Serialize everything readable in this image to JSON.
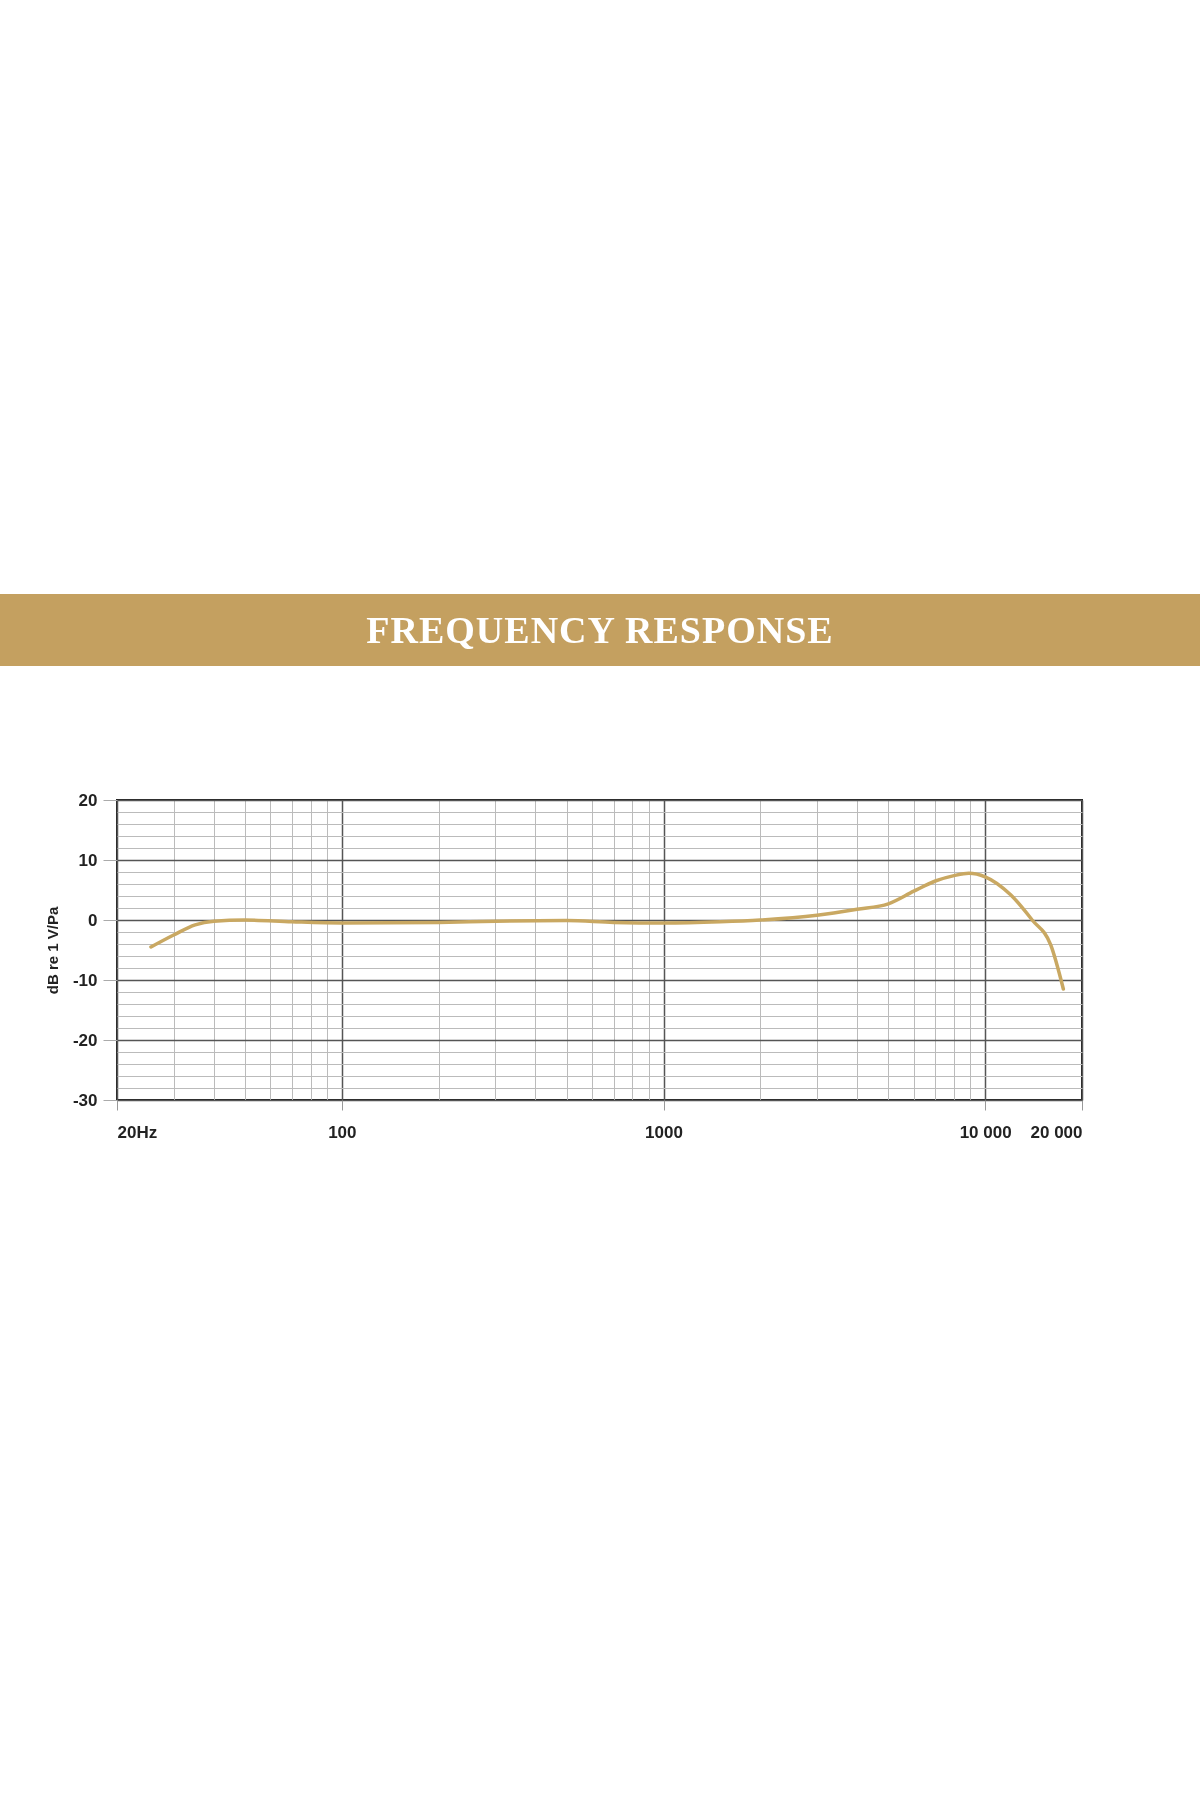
{
  "chart_data": {
    "type": "line",
    "title": "FREQUENCY RESPONSE",
    "ylabel": "dB re 1 V/Pa",
    "x": [
      25.5,
      30,
      35,
      40,
      50,
      70,
      100,
      200,
      300,
      500,
      700,
      1000,
      1500,
      2000,
      3000,
      4000,
      5000,
      6000,
      7000,
      8000,
      8900,
      10000,
      12000,
      14000,
      16000,
      17500
    ],
    "series": [
      {
        "color": "#c9a862",
        "values": [
          -4.5,
          -2.5,
          -0.8,
          -0.2,
          0,
          -0.3,
          -0.5,
          -0.4,
          -0.2,
          -0.1,
          -0.4,
          -0.5,
          -0.3,
          0,
          0.8,
          1.8,
          2.7,
          4.8,
          6.5,
          7.4,
          7.8,
          7.2,
          4.2,
          0,
          -4.2,
          -11.5
        ]
      }
    ],
    "xlim": [
      20,
      20000
    ],
    "ylim": [
      -30,
      20
    ],
    "xticks": [
      {
        "value": 20,
        "label": "20Hz"
      },
      100,
      1000,
      {
        "value": 10000,
        "label": "10 000"
      },
      {
        "value": 20000,
        "label": "20 000"
      }
    ],
    "yticks": [
      -30,
      -20,
      -10,
      0,
      10,
      20
    ],
    "log": "x",
    "grid": true
  }
}
